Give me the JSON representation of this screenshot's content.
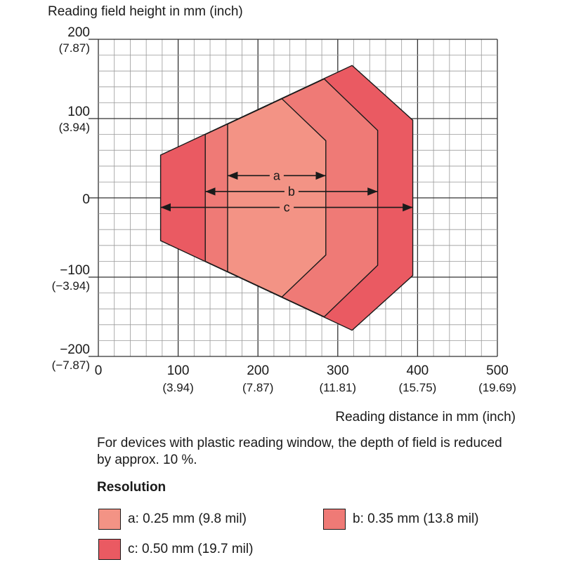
{
  "chart_data": {
    "type": "area",
    "ylabel": "Reading field height in mm (inch)",
    "xlabel": "Reading distance in mm (inch)",
    "xlim": [
      0,
      500
    ],
    "ylim": [
      -200,
      200
    ],
    "grid": true,
    "x_ticks": [
      {
        "value": 0,
        "label": "0",
        "sub": ""
      },
      {
        "value": 100,
        "label": "100",
        "sub": "(3.94)"
      },
      {
        "value": 200,
        "label": "200",
        "sub": "(7.87)"
      },
      {
        "value": 300,
        "label": "300",
        "sub": "(11.81)"
      },
      {
        "value": 400,
        "label": "400",
        "sub": "(15.75)"
      },
      {
        "value": 500,
        "label": "500",
        "sub": "(19.69)"
      }
    ],
    "y_ticks": [
      {
        "value": 200,
        "label": "200",
        "sub": "(7.87)"
      },
      {
        "value": 100,
        "label": "100",
        "sub": "(3.94)"
      },
      {
        "value": 0,
        "label": "0",
        "sub": ""
      },
      {
        "value": -100,
        "label": "−100",
        "sub": "(−3.94)"
      },
      {
        "value": -200,
        "label": "−200",
        "sub": "(−7.87)"
      }
    ],
    "series": [
      {
        "name": "c",
        "color": "#ea5a62",
        "polygon": [
          [
            78,
            54
          ],
          [
            318,
            167
          ],
          [
            394,
            98
          ],
          [
            394,
            -98
          ],
          [
            318,
            -167
          ],
          [
            78,
            -54
          ]
        ],
        "range": [
          78,
          394
        ],
        "marker_y": -12
      },
      {
        "name": "b",
        "color": "#ef7a76",
        "polygon": [
          [
            134,
            80
          ],
          [
            283,
            150
          ],
          [
            350,
            85
          ],
          [
            350,
            -85
          ],
          [
            283,
            -150
          ],
          [
            134,
            -80
          ]
        ],
        "range": [
          134,
          350
        ],
        "marker_y": 8
      },
      {
        "name": "a",
        "color": "#f39385",
        "polygon": [
          [
            162,
            93
          ],
          [
            230,
            125
          ],
          [
            285,
            72
          ],
          [
            285,
            -72
          ],
          [
            230,
            -125
          ],
          [
            162,
            -93
          ]
        ],
        "range": [
          162,
          285
        ],
        "marker_y": 28
      }
    ]
  },
  "note": "For devices with plastic reading window, the depth of field is reduced by approx. 10 %.",
  "legend": {
    "title": "Resolution",
    "items": [
      {
        "label": "a: 0.25 mm (9.8 mil)",
        "color": "#f39385"
      },
      {
        "label": "b: 0.35 mm (13.8 mil)",
        "color": "#ef7a76"
      },
      {
        "label": "c: 0.50 mm (19.7 mil)",
        "color": "#ea5a62"
      }
    ]
  }
}
